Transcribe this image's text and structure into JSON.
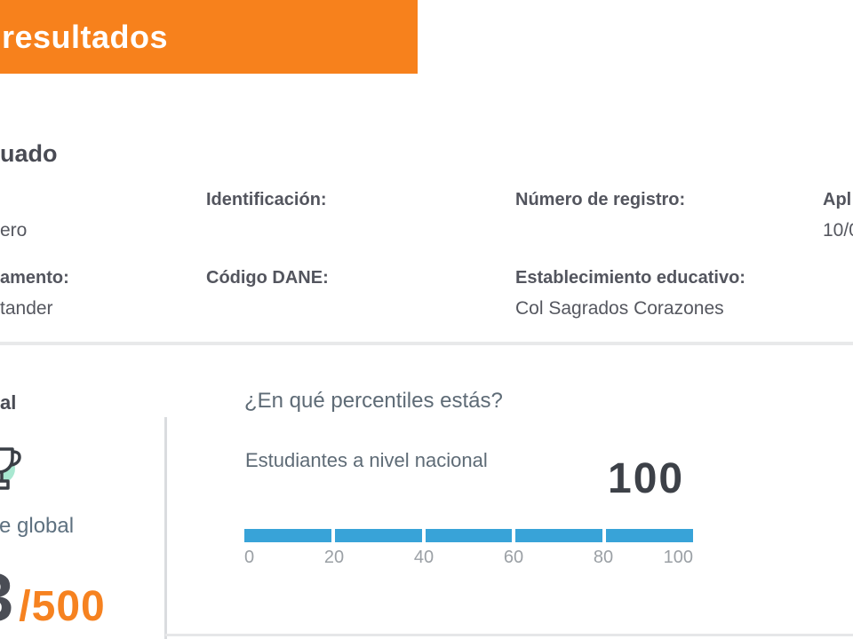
{
  "banner": {
    "title_fragment": "resultados"
  },
  "evaluee": {
    "heading_fragment": "uado",
    "row1": {
      "value_left_fragment": "ero",
      "label_identificacion": "Identificación:",
      "label_registro": "Número de registro:",
      "label_aplicacion_fragment": "Apl",
      "value_aplicacion_fragment": "10/0"
    },
    "row2": {
      "label_departamento_fragment": "amento:",
      "value_departamento_fragment": "tander",
      "label_dane": "Código DANE:",
      "label_establecimiento": "Establecimiento educativo:",
      "value_establecimiento": "Col Sagrados Corazones"
    }
  },
  "global_score": {
    "heading_fragment": "al",
    "icon": "trophy-icon",
    "label_fragment": "e global",
    "score_digit_fragment": "3",
    "denominator": "/500",
    "accent_color": "#f68220"
  },
  "percentiles": {
    "title": "¿En qué percentiles estás?",
    "group_label": "Estudiantes a nivel nacional",
    "value": "100",
    "chart_data": {
      "type": "bar",
      "title": "Estudiantes a nivel nacional",
      "value": 100,
      "axis_min": 0,
      "axis_max": 100,
      "ticks": [
        "0",
        "20",
        "40",
        "60",
        "80",
        "100"
      ],
      "segments": 5,
      "filled_percent": 100,
      "bar_color": "#38a3d8"
    }
  },
  "colors": {
    "banner_orange": "#f7811c",
    "score_orange": "#f68220",
    "bar_blue": "#38a3d8",
    "mint": "#a9e8d1",
    "dark_text": "#4d4f57"
  }
}
